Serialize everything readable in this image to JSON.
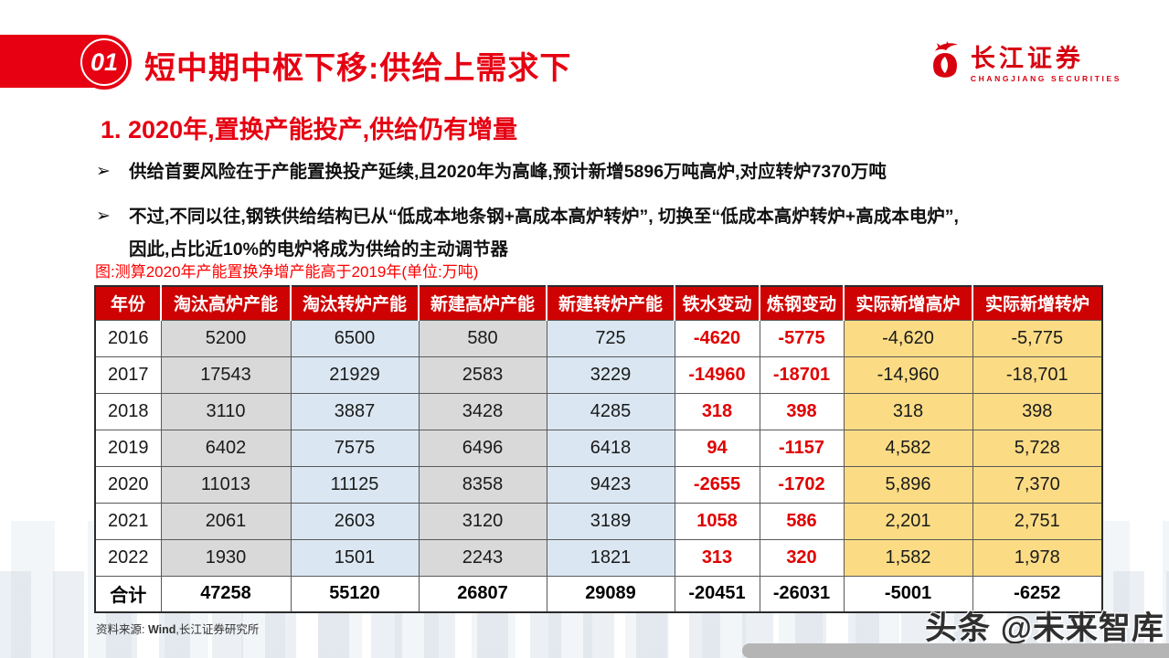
{
  "header": {
    "section_number": "01",
    "title": "短中期中枢下移:供给上需求下"
  },
  "logo": {
    "name_cn": "长江证券",
    "name_en": "CHANGJIANG SECURITIES"
  },
  "content": {
    "subtitle": "1. 2020年,置换产能投产,供给仍有增量",
    "bullet_marker": "➢",
    "bullets": [
      "供给首要风险在于产能置换投产延续,且2020年为高峰,预计新增5896万吨高炉,对应转炉7370万吨",
      "不过,不同以往,钢铁供给结构已从“低成本地条钢+高成本高炉转炉”, 切换至“低成本高炉转炉+高成本电炉”,\n因此,占比近10%的电炉将成为供给的主动调节器"
    ],
    "figure_caption": "图:测算2020年产能置换净增产能高于2019年(单位:万吨)"
  },
  "table": {
    "headers": [
      "年份",
      "淘汰高炉产能",
      "淘汰转炉产能",
      "新建高炉产能",
      "新建转炉产能",
      "铁水变动",
      "炼钢变动",
      "实际新增高炉",
      "实际新增转炉"
    ],
    "rows": [
      [
        "2016",
        "5200",
        "6500",
        "580",
        "725",
        "-4620",
        "-5775",
        "-4,620",
        "-5,775"
      ],
      [
        "2017",
        "17543",
        "21929",
        "2583",
        "3229",
        "-14960",
        "-18701",
        "-14,960",
        "-18,701"
      ],
      [
        "2018",
        "3110",
        "3887",
        "3428",
        "4285",
        "318",
        "398",
        "318",
        "398"
      ],
      [
        "2019",
        "6402",
        "7575",
        "6496",
        "6418",
        "94",
        "-1157",
        "4,582",
        "5,728"
      ],
      [
        "2020",
        "11013",
        "11125",
        "8358",
        "9423",
        "-2655",
        "-1702",
        "5,896",
        "7,370"
      ],
      [
        "2021",
        "2061",
        "2603",
        "3120",
        "3189",
        "1058",
        "586",
        "2,201",
        "2,751"
      ],
      [
        "2022",
        "1930",
        "1501",
        "2243",
        "1821",
        "313",
        "320",
        "1,582",
        "1,978"
      ]
    ],
    "total_row": [
      "合计",
      "47258",
      "55120",
      "26807",
      "29089",
      "-20451",
      "-26031",
      "-5001",
      "-6252"
    ]
  },
  "footer": {
    "source_prefix": "资料来源: ",
    "source_wind": "Wind",
    "source_suffix": ",长江证券研究所"
  },
  "watermark": "头条 @未来智库",
  "colors": {
    "brand_red": "#E60012",
    "table_header_red": "#CE0202",
    "cell_gray": "#D9D9D9",
    "cell_blue": "#DAE7F2",
    "cell_yellow": "#FBDC85",
    "negative_red_text": "#E10000"
  }
}
